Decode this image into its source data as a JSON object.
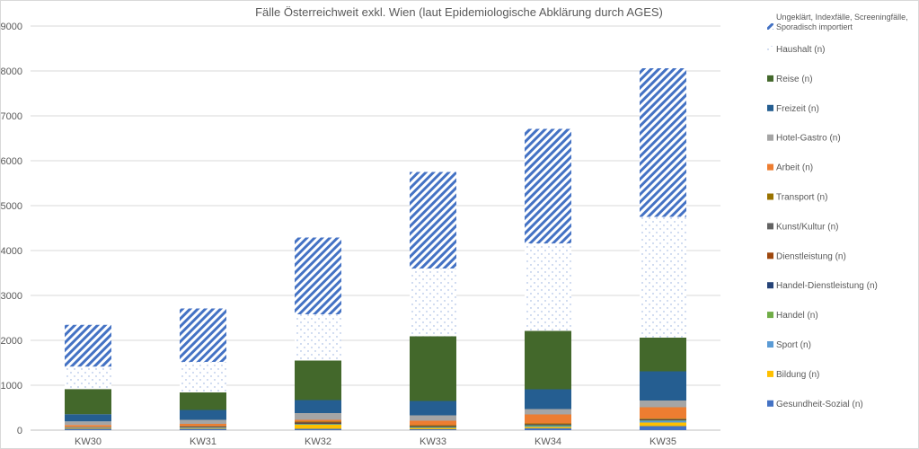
{
  "chart_data": {
    "type": "bar",
    "stacked": true,
    "title": "Fälle Österreichweit exkl. Wien (laut Epidemiologische Abklärung durch AGES)",
    "xlabel": "",
    "ylabel": "",
    "ylim": [
      0,
      9000
    ],
    "yticks": [
      "0",
      "1000",
      "2000",
      "3000",
      "4000",
      "5000",
      "6000",
      "7000",
      "8000",
      "9000"
    ],
    "grid": true,
    "legend_position": "right",
    "categories": [
      "KW30",
      "KW31",
      "KW32",
      "KW33",
      "KW34",
      "KW35"
    ],
    "series": [
      {
        "name": "Gesundheit-Sozial (n)",
        "color": "#4472C4",
        "fill": "solid",
        "values": [
          30,
          30,
          30,
          20,
          40,
          90
        ]
      },
      {
        "name": "Bildung (n)",
        "color": "#FFC000",
        "fill": "solid",
        "values": [
          10,
          15,
          90,
          30,
          30,
          80
        ]
      },
      {
        "name": "Sport (n)",
        "color": "#5B9BD5",
        "fill": "solid",
        "values": [
          5,
          10,
          10,
          10,
          20,
          40
        ]
      },
      {
        "name": "Handel (n)",
        "color": "#70AD47",
        "fill": "solid",
        "values": [
          5,
          5,
          10,
          10,
          20,
          10
        ]
      },
      {
        "name": "Handel-Dienstleistung (n)",
        "color": "#264478",
        "fill": "solid",
        "values": [
          5,
          10,
          10,
          10,
          10,
          10
        ]
      },
      {
        "name": "Dienstleistung (n)",
        "color": "#9E480E",
        "fill": "solid",
        "values": [
          10,
          10,
          20,
          10,
          10,
          10
        ]
      },
      {
        "name": "Kunst/Kultur (n)",
        "color": "#636363",
        "fill": "solid",
        "values": [
          5,
          5,
          10,
          10,
          10,
          5
        ]
      },
      {
        "name": "Transport (n)",
        "color": "#997300",
        "fill": "solid",
        "values": [
          5,
          5,
          10,
          10,
          10,
          15
        ]
      },
      {
        "name": "Arbeit (n)",
        "color": "#ED7D31",
        "fill": "solid",
        "values": [
          40,
          50,
          40,
          100,
          200,
          250
        ]
      },
      {
        "name": "Hotel-Gastro (n)",
        "color": "#A5A5A5",
        "fill": "solid",
        "values": [
          80,
          90,
          150,
          120,
          120,
          150
        ]
      },
      {
        "name": "Freizeit (n)",
        "color": "#255E91",
        "fill": "solid",
        "values": [
          160,
          220,
          290,
          320,
          440,
          650
        ]
      },
      {
        "name": "Reise (n)",
        "color": "#43682B",
        "fill": "solid",
        "values": [
          560,
          390,
          880,
          1440,
          1300,
          750
        ]
      },
      {
        "name": "Haushalt (n)",
        "color": "#4472C4",
        "fill": "dots",
        "values": [
          500,
          680,
          1030,
          1510,
          1950,
          2690
        ]
      },
      {
        "name": "Ungeklärt, Indexfälle, Screeningfälle, Sporadisch importiert",
        "color": "#4472C4",
        "fill": "stripes",
        "values": [
          930,
          1190,
          1710,
          2150,
          2550,
          3310
        ]
      }
    ]
  }
}
